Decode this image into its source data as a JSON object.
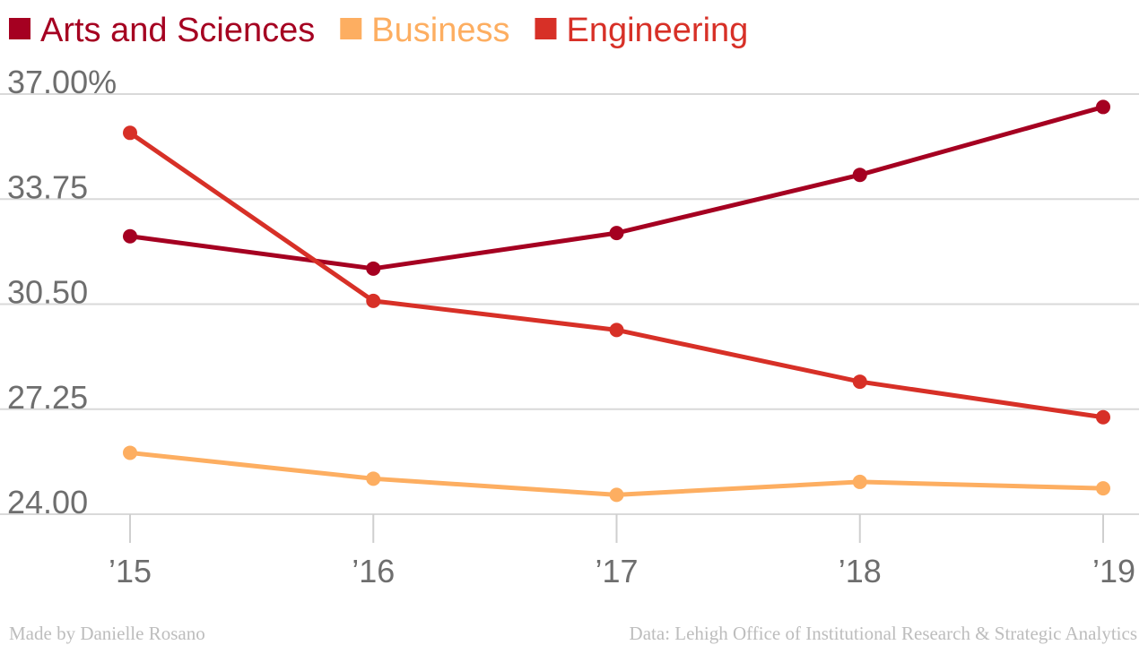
{
  "chart_data": {
    "type": "line",
    "title": "",
    "xlabel": "",
    "ylabel": "",
    "categories": [
      "’15",
      "’16",
      "’17",
      "’18",
      "’19"
    ],
    "y_ticks": [
      "24.00",
      "27.25",
      "30.50",
      "33.75",
      "37.00%"
    ],
    "y_tick_values": [
      24.0,
      27.25,
      30.5,
      33.75,
      37.0
    ],
    "ylim": [
      24.0,
      37.0
    ],
    "grid": true,
    "legend_position": "top-left",
    "series": [
      {
        "name": "Arts and Sciences",
        "color": "#a50021",
        "values": [
          32.6,
          31.6,
          32.7,
          34.5,
          36.6
        ]
      },
      {
        "name": "Business",
        "color": "#fdae61",
        "values": [
          25.9,
          25.1,
          24.6,
          25.0,
          24.8
        ]
      },
      {
        "name": "Engineering",
        "color": "#d73027",
        "values": [
          35.8,
          30.6,
          29.7,
          28.1,
          27.0
        ]
      }
    ]
  },
  "footer": {
    "credit": "Made by Danielle Rosano",
    "source": "Data: Lehigh Office of Institutional Research & Strategic Analytics"
  }
}
